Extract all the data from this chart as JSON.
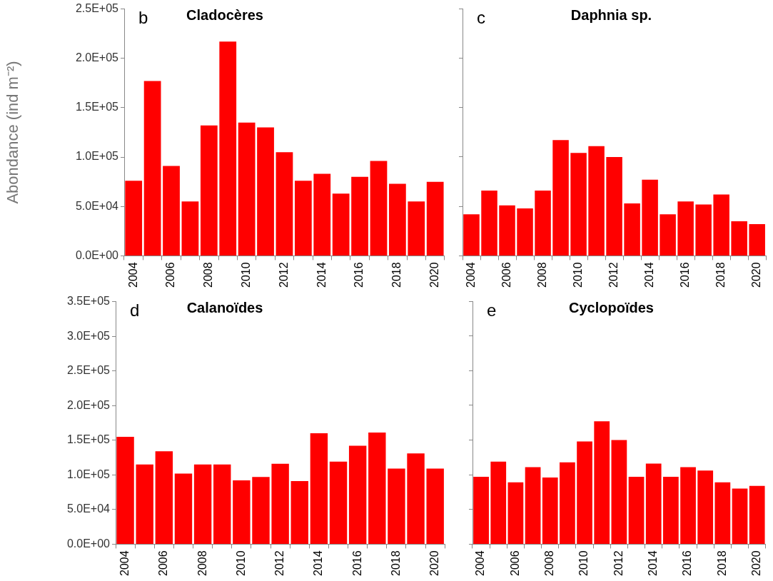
{
  "chart_data": [
    {
      "type": "bar",
      "title": "Cladocères",
      "ylabel": "Abondance (ind m⁻²)",
      "annotations": [
        "b"
      ],
      "color": "#ff0000",
      "categories": [
        "2004",
        null,
        "2006",
        null,
        "2008",
        null,
        "2010",
        null,
        "2012",
        null,
        "2014",
        null,
        "2016",
        null,
        "2018",
        null,
        "2020"
      ],
      "values": [
        76000,
        177000,
        91000,
        55000,
        132000,
        217000,
        135000,
        130000,
        105000,
        76000,
        83000,
        63000,
        80000,
        96000,
        73000,
        55000,
        75000
      ],
      "ylim": [
        0,
        250000
      ],
      "yticks": [
        {
          "value": 0,
          "label": "0.0E+00"
        },
        {
          "value": 50000,
          "label": "5.0E+04"
        },
        {
          "value": 100000,
          "label": "1.0E+05"
        },
        {
          "value": 150000,
          "label": "1.5E+05"
        },
        {
          "value": 200000,
          "label": "2.0E+05"
        },
        {
          "value": 250000,
          "label": "2.5E+05"
        }
      ]
    },
    {
      "type": "bar",
      "title": "Daphnia sp.",
      "annotations": [
        "c"
      ],
      "color": "#ff0000",
      "tick_labels": "x",
      "categories": [
        "2004",
        null,
        "2006",
        null,
        "2008",
        null,
        "2010",
        null,
        "2012",
        null,
        "2014",
        null,
        "2016",
        null,
        "2018",
        null,
        "2020"
      ],
      "values": [
        42000,
        66000,
        51000,
        48000,
        66000,
        117000,
        104000,
        111000,
        100000,
        53000,
        77000,
        42000,
        55000,
        52000,
        62000,
        35000,
        32000
      ],
      "ylim": [
        0,
        250000
      ],
      "yticks": [
        {
          "value": 0,
          "label": null
        },
        {
          "value": 50000,
          "label": null
        },
        {
          "value": 100000,
          "label": null
        },
        {
          "value": 150000,
          "label": null
        },
        {
          "value": 200000,
          "label": null
        },
        {
          "value": 250000,
          "label": null
        }
      ]
    },
    {
      "type": "bar",
      "title": "Calanoïdes",
      "annotations": [
        "d"
      ],
      "color": "#ff0000",
      "categories": [
        "2004",
        null,
        "2006",
        null,
        "2008",
        null,
        "2010",
        null,
        "2012",
        null,
        "2014",
        null,
        "2016",
        null,
        "2018",
        null,
        "2020"
      ],
      "values": [
        155000,
        115000,
        134000,
        102000,
        115000,
        115000,
        92000,
        97000,
        116000,
        91000,
        160000,
        119000,
        142000,
        161000,
        109000,
        131000,
        109000
      ],
      "ylim": [
        0,
        350000
      ],
      "yticks": [
        {
          "value": 0,
          "label": "0.0E+00"
        },
        {
          "value": 50000,
          "label": "5.0E+04"
        },
        {
          "value": 100000,
          "label": "1.0E+05"
        },
        {
          "value": 150000,
          "label": "1.5E+05"
        },
        {
          "value": 200000,
          "label": "2.0E+05"
        },
        {
          "value": 250000,
          "label": "2.5E+05"
        },
        {
          "value": 300000,
          "label": "3.0E+05"
        },
        {
          "value": 350000,
          "label": "3.5E+05"
        }
      ]
    },
    {
      "type": "bar",
      "title": "Cyclopoïdes",
      "annotations": [
        "e"
      ],
      "color": "#ff0000",
      "tick_labels": "x",
      "categories": [
        "2004",
        null,
        "2006",
        null,
        "2008",
        null,
        "2010",
        null,
        "2012",
        null,
        "2014",
        null,
        "2016",
        null,
        "2018",
        null,
        "2020"
      ],
      "values": [
        97000,
        119000,
        89000,
        111000,
        96000,
        118000,
        148000,
        177000,
        150000,
        97000,
        116000,
        97000,
        111000,
        106000,
        89000,
        80000,
        84000
      ],
      "ylim": [
        0,
        350000
      ],
      "yticks": [
        {
          "value": 0,
          "label": null
        },
        {
          "value": 50000,
          "label": null
        },
        {
          "value": 100000,
          "label": null
        },
        {
          "value": 150000,
          "label": null
        },
        {
          "value": 200000,
          "label": null
        },
        {
          "value": 250000,
          "label": null
        },
        {
          "value": 300000,
          "label": null
        },
        {
          "value": 350000,
          "label": null
        }
      ]
    }
  ]
}
